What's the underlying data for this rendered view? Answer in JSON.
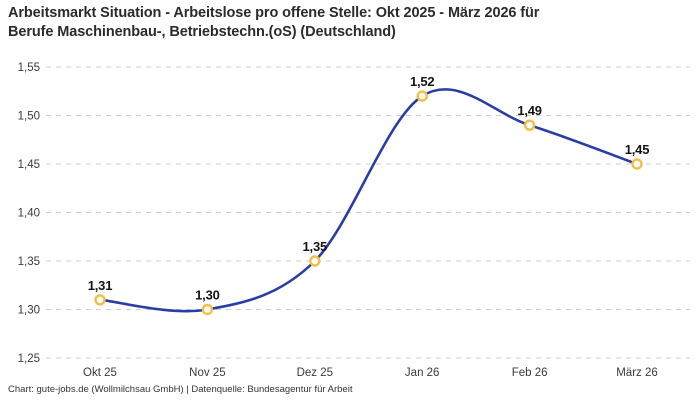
{
  "header": {
    "title_lines": [
      "Arbeitsmarkt Situation - Arbeitslose pro offene Stelle: Okt 2025 - März 2026 für",
      "Berufe Maschinenbau-, Betriebstechn.(oS) (Deutschland)"
    ]
  },
  "footer": {
    "credit": "Chart: gute-jobs.de (Wollmilchsau GmbH) | Datenquelle: Bundesagentur für Arbeit"
  },
  "chart_data": {
    "type": "line",
    "title": "Arbeitsmarkt Situation - Arbeitslose pro offene Stelle: Okt 2025 - März 2026 für Berufe Maschinenbau-, Betriebstechn.(oS) (Deutschland)",
    "categories": [
      "Okt 25",
      "Nov 25",
      "Dez 25",
      "Jan 26",
      "Feb 26",
      "März 26"
    ],
    "values": [
      1.31,
      1.3,
      1.35,
      1.52,
      1.49,
      1.45
    ],
    "value_labels": [
      "1,31",
      "1,30",
      "1,35",
      "1,52",
      "1,49",
      "1,45"
    ],
    "xlabel": "",
    "ylabel": "",
    "ylim": [
      1.25,
      1.55
    ],
    "y_tick_values": [
      1.25,
      1.3,
      1.35,
      1.4,
      1.45,
      1.5,
      1.55
    ],
    "y_tick_labels": [
      "1,25",
      "1,30",
      "1,35",
      "1,40",
      "1,45",
      "1,50",
      "1,55"
    ],
    "grid": "horizontal-dashed",
    "legend": "none",
    "curve": "smooth",
    "line_color": "#2a3da6",
    "marker_color": "#f3bf3f",
    "marker_fill": "#ffffff",
    "grid_color": "#cccccc"
  }
}
